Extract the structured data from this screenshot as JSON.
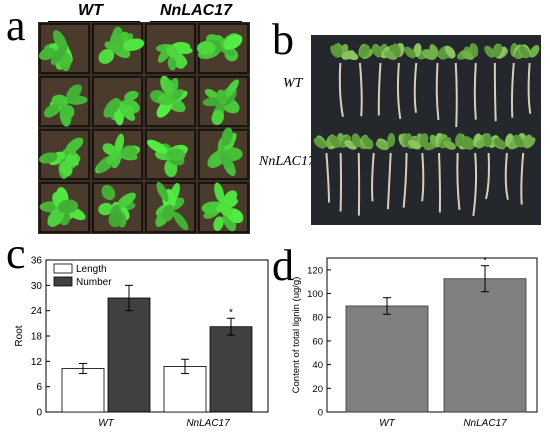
{
  "panels": {
    "a": {
      "letter": "a",
      "headers": [
        "WT",
        "NnLAC17"
      ]
    },
    "b": {
      "letter": "b",
      "rows": [
        "WT",
        "NnLAC17"
      ]
    },
    "c": {
      "letter": "c"
    },
    "d": {
      "letter": "d"
    }
  },
  "colors": {
    "length_fill": "#ffffff",
    "number_fill": "#404040",
    "lignin_fill": "#808080",
    "leaf_green": "#5c9a3c",
    "soil": "#3a2f25",
    "photo_b_bg": "#24272b",
    "root": "#d9cfb6"
  },
  "chart_data": [
    {
      "id": "c",
      "type": "bar",
      "title": "",
      "xlabel": "",
      "ylabel": "Root",
      "categories": [
        "WT",
        "NnLAC17"
      ],
      "series": [
        {
          "name": "Length",
          "values": [
            10.3,
            10.8
          ],
          "errors": [
            1.2,
            1.7
          ],
          "sig": [
            "",
            ""
          ]
        },
        {
          "name": "Number",
          "values": [
            27.0,
            20.2
          ],
          "errors": [
            3.0,
            2.0
          ],
          "sig": [
            "",
            "*"
          ]
        }
      ],
      "ylim": [
        0,
        36
      ],
      "yticks": [
        "0",
        "6",
        "12",
        "18",
        "24",
        "30",
        "36"
      ],
      "legend": "top-left",
      "grid": false
    },
    {
      "id": "d",
      "type": "bar",
      "title": "",
      "xlabel": "",
      "ylabel": "Content of total lignin (ug/g)",
      "categories": [
        "WT",
        "NnLAC17"
      ],
      "series": [
        {
          "values": [
            89.5,
            112.5
          ],
          "errors": [
            7,
            11
          ],
          "sig": [
            "",
            "*"
          ]
        }
      ],
      "ylim": [
        0,
        130
      ],
      "yticks": [
        "0",
        "20",
        "40",
        "60",
        "80",
        "100",
        "120"
      ],
      "grid": false
    }
  ]
}
